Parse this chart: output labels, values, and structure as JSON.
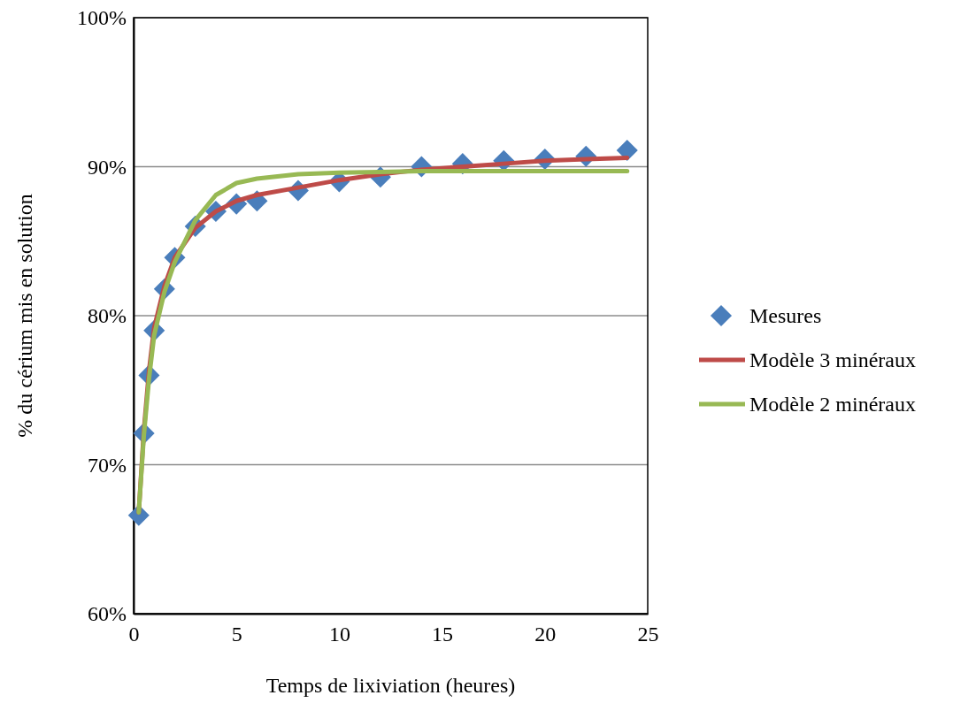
{
  "chart_data": {
    "type": "scatter",
    "xlabel": "Temps de lixiviation (heures)",
    "ylabel": "% du cérium mis en solution",
    "x": [
      0.25,
      0.5,
      0.75,
      1,
      1.5,
      2,
      3,
      4,
      5,
      6,
      8,
      10,
      12,
      14,
      16,
      18,
      20,
      22,
      24
    ],
    "xlim": [
      0,
      25
    ],
    "xticks": [
      0,
      5,
      10,
      15,
      20,
      25
    ],
    "ylim": [
      60,
      100
    ],
    "yticks": [
      {
        "value": 60,
        "label": "60%"
      },
      {
        "value": 70,
        "label": "70%"
      },
      {
        "value": 80,
        "label": "80%"
      },
      {
        "value": 90,
        "label": "90%"
      },
      {
        "value": 100,
        "label": "100%"
      }
    ],
    "grid": "y",
    "legend": "right",
    "series": [
      {
        "name": "Mesures",
        "marker": "diamond",
        "color": "#4a7ebb",
        "values": [
          66.6,
          72.1,
          76.0,
          79.0,
          81.8,
          83.9,
          86.0,
          87.0,
          87.5,
          87.7,
          88.4,
          89.0,
          89.3,
          90.0,
          90.2,
          90.4,
          90.5,
          90.7,
          91.1
        ]
      },
      {
        "name": "Modèle 3 minéraux",
        "type": "line",
        "marker": "none",
        "color": "#be4b48",
        "values": [
          66.8,
          72.3,
          76.3,
          79.2,
          82.0,
          83.9,
          85.9,
          87.0,
          87.7,
          88.1,
          88.6,
          89.1,
          89.5,
          89.8,
          90.0,
          90.2,
          90.4,
          90.5,
          90.6
        ]
      },
      {
        "name": "Modèle 2 minéraux",
        "type": "line",
        "marker": "none",
        "color": "#98b954",
        "values": [
          66.8,
          72.0,
          75.8,
          78.7,
          81.6,
          83.6,
          86.4,
          88.1,
          88.9,
          89.2,
          89.5,
          89.6,
          89.65,
          89.7,
          89.7,
          89.7,
          89.7,
          89.7,
          89.7
        ]
      }
    ]
  }
}
